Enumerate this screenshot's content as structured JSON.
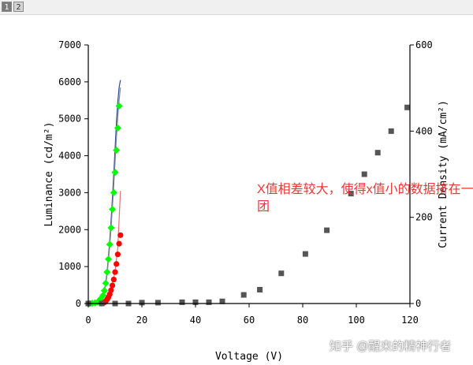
{
  "tabs": [
    {
      "label": "1",
      "active": true
    },
    {
      "label": "2",
      "active": false
    }
  ],
  "annotation": "X值相差较大，使得x值小的数据挤在一团",
  "watermark": "知乎 @醒来的精神行者",
  "colors": {
    "luminance_markers": "#00ff00",
    "red_markers": "#ff0000",
    "current_markers": "#555555",
    "curve_blue": "#2a4c8f",
    "curve_grey": "#8a8a8a",
    "annotation": "#e53935"
  },
  "chart_data": {
    "type": "scatter",
    "xlabel": "Voltage (V)",
    "ylabel_left": "Luminance (cd/m²)",
    "ylabel_right": "Current Density (mA/cm²)",
    "xlim": [
      0,
      120
    ],
    "ylim_left": [
      0,
      7000
    ],
    "ylim_right": [
      0,
      600
    ],
    "xticks": [
      0,
      20,
      40,
      60,
      80,
      100,
      120
    ],
    "yticks_left": [
      0,
      1000,
      2000,
      3000,
      4000,
      5000,
      6000,
      7000
    ],
    "yticks_right": [
      0,
      200,
      400,
      600
    ],
    "grid": false,
    "legend": "none",
    "series": [
      {
        "marker": "diamond",
        "axis": "left",
        "color": "#00ff00",
        "x": [
          0.5,
          1.5,
          2.5,
          3.5,
          4.5,
          5.5,
          6.0,
          6.5,
          7.0,
          7.5,
          8.0,
          8.5,
          9.0,
          9.5,
          10.0,
          10.5,
          11.0,
          11.5
        ],
        "y": [
          0,
          5,
          15,
          40,
          120,
          220,
          350,
          550,
          850,
          1200,
          1600,
          2050,
          2550,
          3000,
          3550,
          4150,
          4750,
          5350
        ]
      },
      {
        "marker": "circle",
        "axis": "left",
        "color": "#ff0000",
        "x": [
          5.0,
          5.5,
          6.0,
          6.5,
          7.0,
          7.5,
          8.0,
          8.5,
          9.0,
          9.5,
          10.0,
          10.5,
          11.0,
          11.5,
          12.0
        ],
        "y": [
          0,
          10,
          30,
          60,
          110,
          170,
          250,
          360,
          490,
          650,
          850,
          1070,
          1330,
          1620,
          1850
        ]
      },
      {
        "marker": "square",
        "axis": "right",
        "color": "#555555",
        "x": [
          0,
          5,
          10,
          15,
          20,
          26,
          35,
          40,
          45,
          50,
          58,
          64,
          72,
          81,
          89,
          98,
          103,
          108,
          113,
          119
        ],
        "y": [
          0,
          0,
          0,
          0,
          2,
          2,
          3,
          3,
          3,
          5,
          20,
          32,
          70,
          115,
          170,
          255,
          300,
          350,
          400,
          455
        ]
      },
      {
        "type": "line",
        "axis": "left",
        "color": "#2a4c8f",
        "x": [
          0,
          2,
          4,
          5,
          6,
          6.5,
          7,
          7.5,
          8,
          8.5,
          9,
          9.5,
          10,
          10.5,
          11,
          11.5,
          12
        ],
        "y": [
          0,
          0,
          50,
          150,
          350,
          550,
          850,
          1250,
          1700,
          2250,
          2850,
          3500,
          4200,
          4900,
          5450,
          5850,
          6050
        ]
      },
      {
        "type": "line",
        "axis": "left",
        "color": "#8a8a8a",
        "x": [
          0,
          2,
          4,
          5,
          6,
          6.5,
          7,
          7.5,
          8,
          8.5,
          9,
          9.5,
          10,
          10.5,
          11,
          11.5,
          12
        ],
        "y": [
          0,
          0,
          40,
          130,
          320,
          500,
          780,
          1150,
          1550,
          2050,
          2600,
          3200,
          3850,
          4500,
          5050,
          5500,
          5850
        ]
      },
      {
        "type": "line",
        "axis": "left",
        "color": "#e57373",
        "x": [
          5,
          6,
          7,
          8,
          9,
          10,
          11,
          12
        ],
        "y": [
          0,
          40,
          120,
          280,
          520,
          880,
          1500,
          3050
        ]
      }
    ]
  }
}
